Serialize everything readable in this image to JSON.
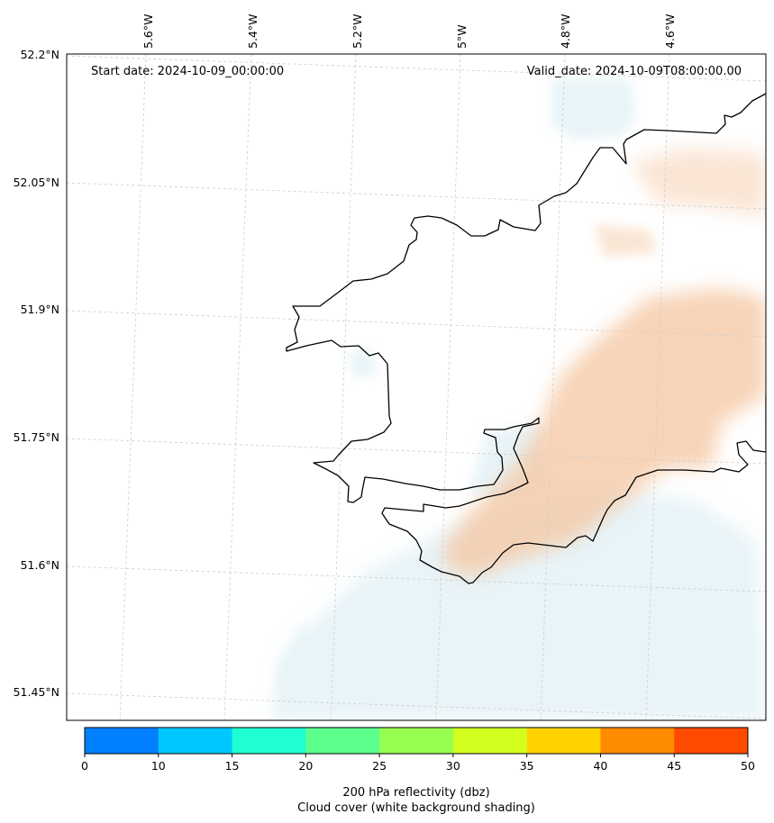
{
  "map": {
    "start_date_text": "Start date: 2024-10-09_00:00:00",
    "valid_date_text": "Valid_date: 2024-10-09T08:00:00.00",
    "longitude_labels": [
      "5.6°W",
      "5.4°W",
      "5.2°W",
      "5°W",
      "4.8°W",
      "4.6°W"
    ],
    "latitude_labels": [
      "52.2°N",
      "52.05°N",
      "51.9°N",
      "51.75°N",
      "51.6°N",
      "51.45°N"
    ],
    "extent": {
      "lon_min": -5.75,
      "lon_max": -4.42,
      "lat_min": 51.42,
      "lat_max": 52.2
    },
    "coastline_color": "#000000",
    "gridline_color": "#cccccc",
    "reflectivity_shading_color": "#f5c6a0",
    "cloud_shading_color": "#d6ebf2"
  },
  "colorbar": {
    "ticks": [
      "0",
      "10",
      "15",
      "20",
      "25",
      "30",
      "35",
      "40",
      "45",
      "50"
    ],
    "colors": [
      "#0080ff",
      "#00c8ff",
      "#1effd2",
      "#5aff8c",
      "#96ff50",
      "#d2ff1e",
      "#ffd200",
      "#ff8c00",
      "#ff4b00"
    ],
    "label_line1": "200 hPa reflectivity (dbz)",
    "label_line2": "Cloud cover (white background shading)"
  }
}
